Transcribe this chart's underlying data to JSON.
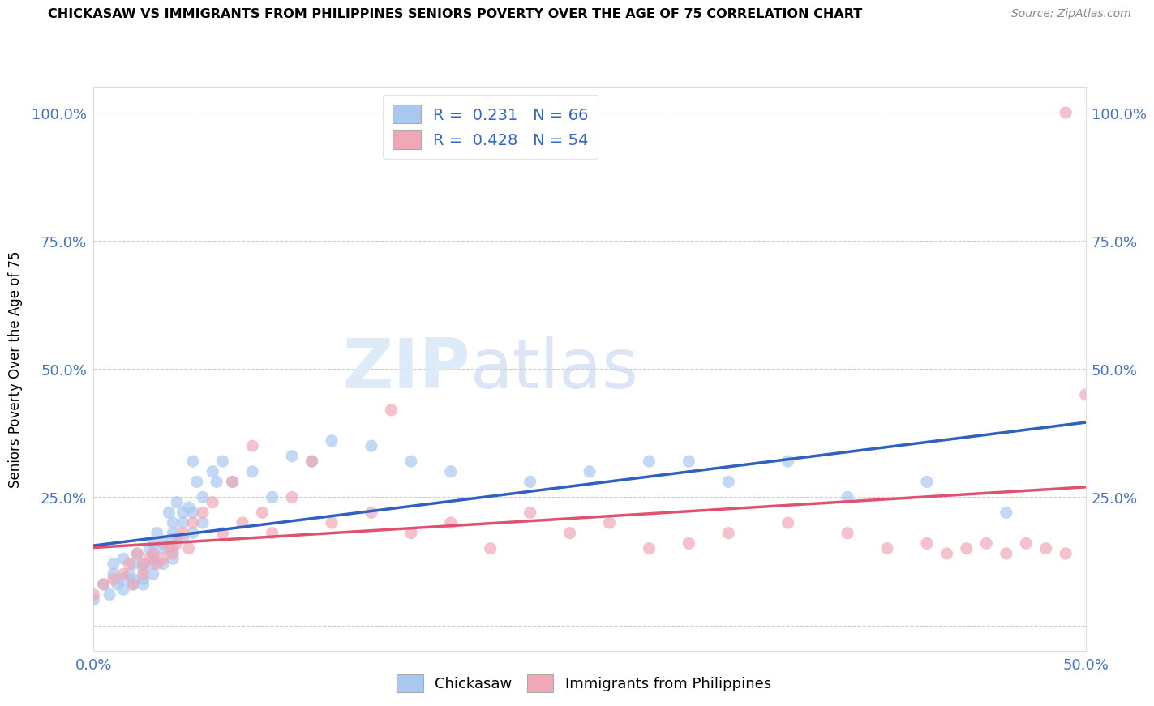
{
  "title": "CHICKASAW VS IMMIGRANTS FROM PHILIPPINES SENIORS POVERTY OVER THE AGE OF 75 CORRELATION CHART",
  "source": "Source: ZipAtlas.com",
  "ylabel": "Seniors Poverty Over the Age of 75",
  "xlim": [
    0.0,
    0.5
  ],
  "ylim": [
    -0.05,
    1.05
  ],
  "legend1_R": "0.231",
  "legend1_N": "66",
  "legend2_R": "0.428",
  "legend2_N": "54",
  "blue_scatter_color": "#a8c8f0",
  "pink_scatter_color": "#f0a8b8",
  "blue_line_color": "#3060c0",
  "blue_dash_color": "#90b8e8",
  "pink_line_color": "#e05070",
  "watermark_zip": "ZIP",
  "watermark_atlas": "atlas",
  "chickasaw_x": [
    0.0,
    0.005,
    0.008,
    0.01,
    0.01,
    0.012,
    0.015,
    0.015,
    0.015,
    0.018,
    0.02,
    0.02,
    0.02,
    0.022,
    0.025,
    0.025,
    0.025,
    0.025,
    0.028,
    0.03,
    0.03,
    0.03,
    0.03,
    0.03,
    0.032,
    0.035,
    0.035,
    0.035,
    0.038,
    0.04,
    0.04,
    0.04,
    0.04,
    0.04,
    0.042,
    0.045,
    0.045,
    0.045,
    0.048,
    0.05,
    0.05,
    0.05,
    0.052,
    0.055,
    0.055,
    0.06,
    0.062,
    0.065,
    0.07,
    0.08,
    0.09,
    0.1,
    0.11,
    0.12,
    0.14,
    0.16,
    0.18,
    0.22,
    0.25,
    0.28,
    0.3,
    0.32,
    0.35,
    0.38,
    0.42,
    0.46
  ],
  "chickasaw_y": [
    0.05,
    0.08,
    0.06,
    0.12,
    0.1,
    0.08,
    0.13,
    0.09,
    0.07,
    0.1,
    0.12,
    0.09,
    0.08,
    0.14,
    0.12,
    0.11,
    0.09,
    0.08,
    0.15,
    0.16,
    0.14,
    0.13,
    0.12,
    0.1,
    0.18,
    0.16,
    0.15,
    0.12,
    0.22,
    0.2,
    0.18,
    0.17,
    0.15,
    0.13,
    0.24,
    0.22,
    0.2,
    0.17,
    0.23,
    0.32,
    0.22,
    0.18,
    0.28,
    0.25,
    0.2,
    0.3,
    0.28,
    0.32,
    0.28,
    0.3,
    0.25,
    0.33,
    0.32,
    0.36,
    0.35,
    0.32,
    0.3,
    0.28,
    0.3,
    0.32,
    0.32,
    0.28,
    0.32,
    0.25,
    0.28,
    0.22
  ],
  "philippines_x": [
    0.0,
    0.005,
    0.01,
    0.015,
    0.018,
    0.02,
    0.022,
    0.025,
    0.025,
    0.028,
    0.03,
    0.032,
    0.035,
    0.038,
    0.04,
    0.042,
    0.045,
    0.048,
    0.05,
    0.055,
    0.06,
    0.065,
    0.07,
    0.075,
    0.08,
    0.085,
    0.09,
    0.1,
    0.11,
    0.12,
    0.14,
    0.15,
    0.16,
    0.18,
    0.2,
    0.22,
    0.24,
    0.26,
    0.28,
    0.3,
    0.32,
    0.35,
    0.38,
    0.4,
    0.42,
    0.43,
    0.44,
    0.45,
    0.46,
    0.47,
    0.48,
    0.49,
    0.5,
    0.49
  ],
  "philippines_y": [
    0.06,
    0.08,
    0.09,
    0.1,
    0.12,
    0.08,
    0.14,
    0.12,
    0.1,
    0.13,
    0.14,
    0.12,
    0.13,
    0.15,
    0.14,
    0.16,
    0.18,
    0.15,
    0.2,
    0.22,
    0.24,
    0.18,
    0.28,
    0.2,
    0.35,
    0.22,
    0.18,
    0.25,
    0.32,
    0.2,
    0.22,
    0.42,
    0.18,
    0.2,
    0.15,
    0.22,
    0.18,
    0.2,
    0.15,
    0.16,
    0.18,
    0.2,
    0.18,
    0.15,
    0.16,
    0.14,
    0.15,
    0.16,
    0.14,
    0.16,
    0.15,
    0.14,
    0.45,
    1.0
  ]
}
